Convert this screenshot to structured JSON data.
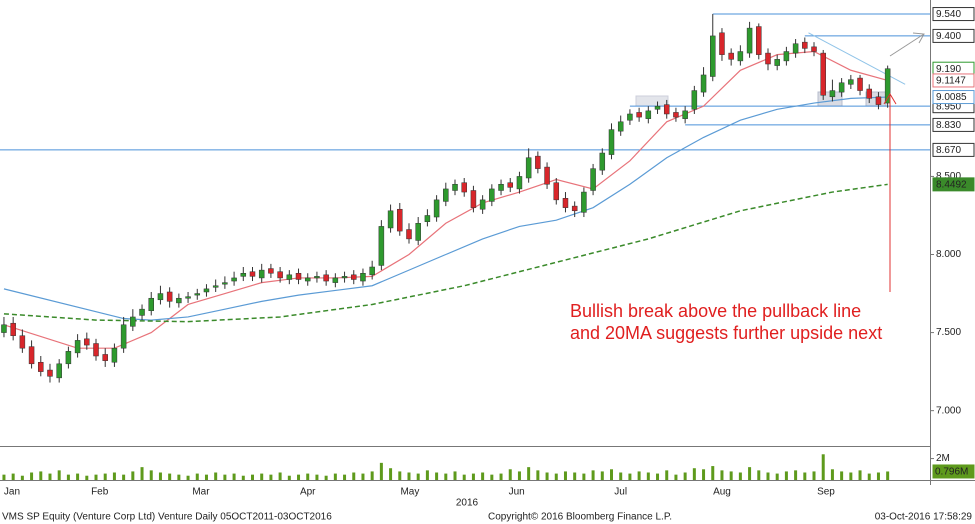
{
  "chart_data": {
    "type": "candlestick",
    "xlim": [
      -0.43,
      100.6
    ],
    "xticks": [
      {
        "value": 0.87,
        "label": "Jan"
      },
      {
        "value": 10.4,
        "label": "Feb"
      },
      {
        "value": 21.4,
        "label": "Mar"
      },
      {
        "value": 33.0,
        "label": "Apr"
      },
      {
        "value": 44.1,
        "label": "May"
      },
      {
        "value": 55.7,
        "label": "Jun"
      },
      {
        "value": 67.0,
        "label": "Jul"
      },
      {
        "value": 78.0,
        "label": "Aug"
      },
      {
        "value": 89.3,
        "label": "Sep"
      }
    ],
    "year_label": "2016",
    "ylim": [
      6.78,
      9.63
    ],
    "yticks": [
      {
        "value": 7,
        "label": "7.000"
      },
      {
        "value": 7.5,
        "label": "7.500"
      },
      {
        "value": 8,
        "label": "8.000"
      },
      {
        "value": 8.5,
        "label": "8.500"
      }
    ],
    "up_color": "#2e9a2e",
    "down_color": "#d8262b",
    "open": [
      7.5,
      7.56,
      7.48,
      7.41,
      7.31,
      7.26,
      7.21,
      7.3,
      7.37,
      7.46,
      7.43,
      7.36,
      7.31,
      7.4,
      7.54,
      7.61,
      7.64,
      7.71,
      7.76,
      7.69,
      7.72,
      7.74,
      7.76,
      7.79,
      7.81,
      7.83,
      7.86,
      7.89,
      7.85,
      7.91,
      7.89,
      7.84,
      7.88,
      7.83,
      7.85,
      7.87,
      7.82,
      7.85,
      7.87,
      7.83,
      7.87,
      7.93,
      8.17,
      8.29,
      8.16,
      8.09,
      8.21,
      8.24,
      8.34,
      8.41,
      8.46,
      8.41,
      8.29,
      8.34,
      8.41,
      8.46,
      8.42,
      8.49,
      8.63,
      8.56,
      8.46,
      8.36,
      8.31,
      8.27,
      8.41,
      8.54,
      8.64,
      8.79,
      8.86,
      8.91,
      8.87,
      8.93,
      8.96,
      8.91,
      8.87,
      8.93,
      9.04,
      9.14,
      9.42,
      9.29,
      9.24,
      9.29,
      9.46,
      9.29,
      9.21,
      9.24,
      9.29,
      9.36,
      9.33,
      9.29,
      9.01,
      9.04,
      9.09,
      9.13,
      9.06,
      9.01,
      8.97
    ],
    "high": [
      7.6,
      7.6,
      7.52,
      7.45,
      7.35,
      7.3,
      7.33,
      7.41,
      7.49,
      7.5,
      7.46,
      7.4,
      7.43,
      7.6,
      7.65,
      7.68,
      7.76,
      7.8,
      7.79,
      7.75,
      7.76,
      7.78,
      7.81,
      7.84,
      7.86,
      7.89,
      7.92,
      7.92,
      7.94,
      7.94,
      7.92,
      7.9,
      7.91,
      7.88,
      7.89,
      7.9,
      7.88,
      7.89,
      7.9,
      7.91,
      7.96,
      8.22,
      8.32,
      8.33,
      8.2,
      8.24,
      8.29,
      8.38,
      8.46,
      8.48,
      8.49,
      8.44,
      8.38,
      8.45,
      8.48,
      8.49,
      8.53,
      8.68,
      8.66,
      8.59,
      8.49,
      8.4,
      8.34,
      8.43,
      8.58,
      8.68,
      8.84,
      8.89,
      8.93,
      8.94,
      8.95,
      8.98,
      8.99,
      8.94,
      8.95,
      9.08,
      9.2,
      9.54,
      9.45,
      9.32,
      9.34,
      9.49,
      9.48,
      9.32,
      9.28,
      9.33,
      9.38,
      9.39,
      9.36,
      9.31,
      9.12,
      9.13,
      9.15,
      9.15,
      9.09,
      9.04,
      9.21
    ],
    "low": [
      7.47,
      7.45,
      7.37,
      7.27,
      7.22,
      7.18,
      7.18,
      7.27,
      7.34,
      7.39,
      7.32,
      7.28,
      7.28,
      7.37,
      7.51,
      7.58,
      7.61,
      7.68,
      7.66,
      7.66,
      7.69,
      7.71,
      7.73,
      7.76,
      7.78,
      7.8,
      7.83,
      7.83,
      7.82,
      7.85,
      7.82,
      7.81,
      7.81,
      7.8,
      7.82,
      7.8,
      7.79,
      7.82,
      7.81,
      7.8,
      7.84,
      7.9,
      8.14,
      8.12,
      8.07,
      8.06,
      8.18,
      8.21,
      8.31,
      8.38,
      8.37,
      8.27,
      8.26,
      8.31,
      8.38,
      8.4,
      8.39,
      8.46,
      8.52,
      8.42,
      8.32,
      8.27,
      8.24,
      8.24,
      8.38,
      8.51,
      8.61,
      8.76,
      8.83,
      8.85,
      8.84,
      8.9,
      8.87,
      8.85,
      8.84,
      8.9,
      9.01,
      9.11,
      9.24,
      9.21,
      9.21,
      9.26,
      9.25,
      9.18,
      9.18,
      9.21,
      9.26,
      9.29,
      9.27,
      8.99,
      8.98,
      9.01,
      9.06,
      9.02,
      8.97,
      8.93,
      8.94
    ],
    "close": [
      7.55,
      7.48,
      7.4,
      7.3,
      7.25,
      7.22,
      7.3,
      7.38,
      7.45,
      7.42,
      7.35,
      7.32,
      7.4,
      7.55,
      7.6,
      7.65,
      7.72,
      7.75,
      7.7,
      7.72,
      7.73,
      7.75,
      7.78,
      7.8,
      7.82,
      7.85,
      7.88,
      7.86,
      7.9,
      7.88,
      7.85,
      7.87,
      7.84,
      7.85,
      7.86,
      7.83,
      7.85,
      7.86,
      7.84,
      7.88,
      7.92,
      8.18,
      8.28,
      8.15,
      8.1,
      8.2,
      8.25,
      8.35,
      8.42,
      8.45,
      8.4,
      8.3,
      8.35,
      8.42,
      8.45,
      8.43,
      8.5,
      8.62,
      8.55,
      8.45,
      8.35,
      8.3,
      8.28,
      8.4,
      8.55,
      8.65,
      8.8,
      8.85,
      8.9,
      8.88,
      8.92,
      8.95,
      8.9,
      8.88,
      8.92,
      9.05,
      9.15,
      9.4,
      9.28,
      9.25,
      9.3,
      9.45,
      9.28,
      9.22,
      9.25,
      9.3,
      9.35,
      9.32,
      9.3,
      9.02,
      9.05,
      9.1,
      9.12,
      9.05,
      9.0,
      8.96,
      9.19
    ],
    "last_price": {
      "value": 9.19,
      "label": "9.190"
    },
    "series": [
      {
        "color": "#e8737a",
        "dashed": false,
        "x": [
          0,
          8,
          12,
          16,
          20,
          24,
          28,
          32,
          36,
          40,
          44,
          48,
          52,
          56,
          60,
          64,
          68,
          72,
          76,
          80,
          84,
          88,
          92,
          96
        ],
        "values": [
          7.55,
          7.4,
          7.4,
          7.5,
          7.68,
          7.75,
          7.82,
          7.85,
          7.85,
          7.86,
          8.0,
          8.2,
          8.33,
          8.4,
          8.48,
          8.42,
          8.6,
          8.85,
          8.95,
          9.18,
          9.28,
          9.3,
          9.18,
          9.1147
        ],
        "last_label": "9.1147"
      },
      {
        "color": "#5b9bd5",
        "dashed": false,
        "x": [
          0,
          13,
          16,
          20,
          24,
          28,
          32,
          36,
          40,
          44,
          48,
          52,
          56,
          60,
          64,
          68,
          72,
          76,
          80,
          84,
          88,
          92,
          96
        ],
        "values": [
          7.78,
          7.59,
          7.58,
          7.6,
          7.65,
          7.7,
          7.74,
          7.77,
          7.8,
          7.9,
          8.0,
          8.1,
          8.18,
          8.22,
          8.3,
          8.45,
          8.62,
          8.75,
          8.86,
          8.93,
          8.97,
          9.0,
          9.0085
        ],
        "last_label": "9.0085"
      },
      {
        "color": "#3a8a2a",
        "dashed": true,
        "x": [
          0,
          10,
          20,
          30,
          40,
          50,
          60,
          70,
          80,
          90,
          96
        ],
        "values": [
          7.62,
          7.58,
          7.57,
          7.6,
          7.68,
          7.8,
          7.95,
          8.1,
          8.28,
          8.4,
          8.4492
        ],
        "last_label": "8.4492"
      }
    ],
    "levels": [
      {
        "value": 9.54,
        "label": "9.540",
        "start": 77
      },
      {
        "value": 9.4,
        "label": "9.400",
        "start": 87
      },
      {
        "value": 8.95,
        "label": "8.950",
        "start": 68
      },
      {
        "value": 8.83,
        "label": "8.830",
        "start": 74
      },
      {
        "value": 8.67,
        "label": "8.670"
      }
    ],
    "trendline": {
      "x": [
        87.4,
        97.9
      ],
      "values": [
        9.42,
        9.09
      ],
      "color": "#8fc3e8"
    },
    "annotation": [
      "Bullish break above the pullback line",
      "and 20MA suggests further upside next"
    ],
    "volume": {
      "color": "#5e9a1c",
      "ylim": [
        0,
        2.8
      ],
      "yticks": [
        {
          "value": 2,
          "label": "2M"
        }
      ],
      "values": [
        0.5,
        0.6,
        0.4,
        0.7,
        0.8,
        0.6,
        0.9,
        0.5,
        0.6,
        0.4,
        0.5,
        0.6,
        0.7,
        0.5,
        0.8,
        1.2,
        0.9,
        0.7,
        0.6,
        0.5,
        0.4,
        0.6,
        0.5,
        0.7,
        0.5,
        0.6,
        0.4,
        0.5,
        0.6,
        0.5,
        0.7,
        0.4,
        0.5,
        0.6,
        0.5,
        0.4,
        0.6,
        0.5,
        0.7,
        0.6,
        0.8,
        1.6,
        1.1,
        0.8,
        0.7,
        0.6,
        0.9,
        0.7,
        0.6,
        0.8,
        0.5,
        0.6,
        0.7,
        0.5,
        0.6,
        1.0,
        0.8,
        1.2,
        0.9,
        0.7,
        0.6,
        0.8,
        0.7,
        0.6,
        0.9,
        0.8,
        1.0,
        0.7,
        0.6,
        0.8,
        0.7,
        0.6,
        0.9,
        0.5,
        0.7,
        1.1,
        1.0,
        1.3,
        0.9,
        0.8,
        0.7,
        1.2,
        0.9,
        0.7,
        0.6,
        0.8,
        0.9,
        0.7,
        0.8,
        2.4,
        1.0,
        0.8,
        0.7,
        0.9,
        0.6,
        0.7,
        0.796
      ],
      "last_label": {
        "value": 0.796,
        "label": "0.796M"
      }
    },
    "footer": {
      "left": "VMS SP Equity (Venture Corp Ltd) Venture  Daily 05OCT2011-03OCT2016",
      "center": "Copyright© 2016 Bloomberg Finance L.P.",
      "right": "03-Oct-2016 17:58:29"
    }
  }
}
